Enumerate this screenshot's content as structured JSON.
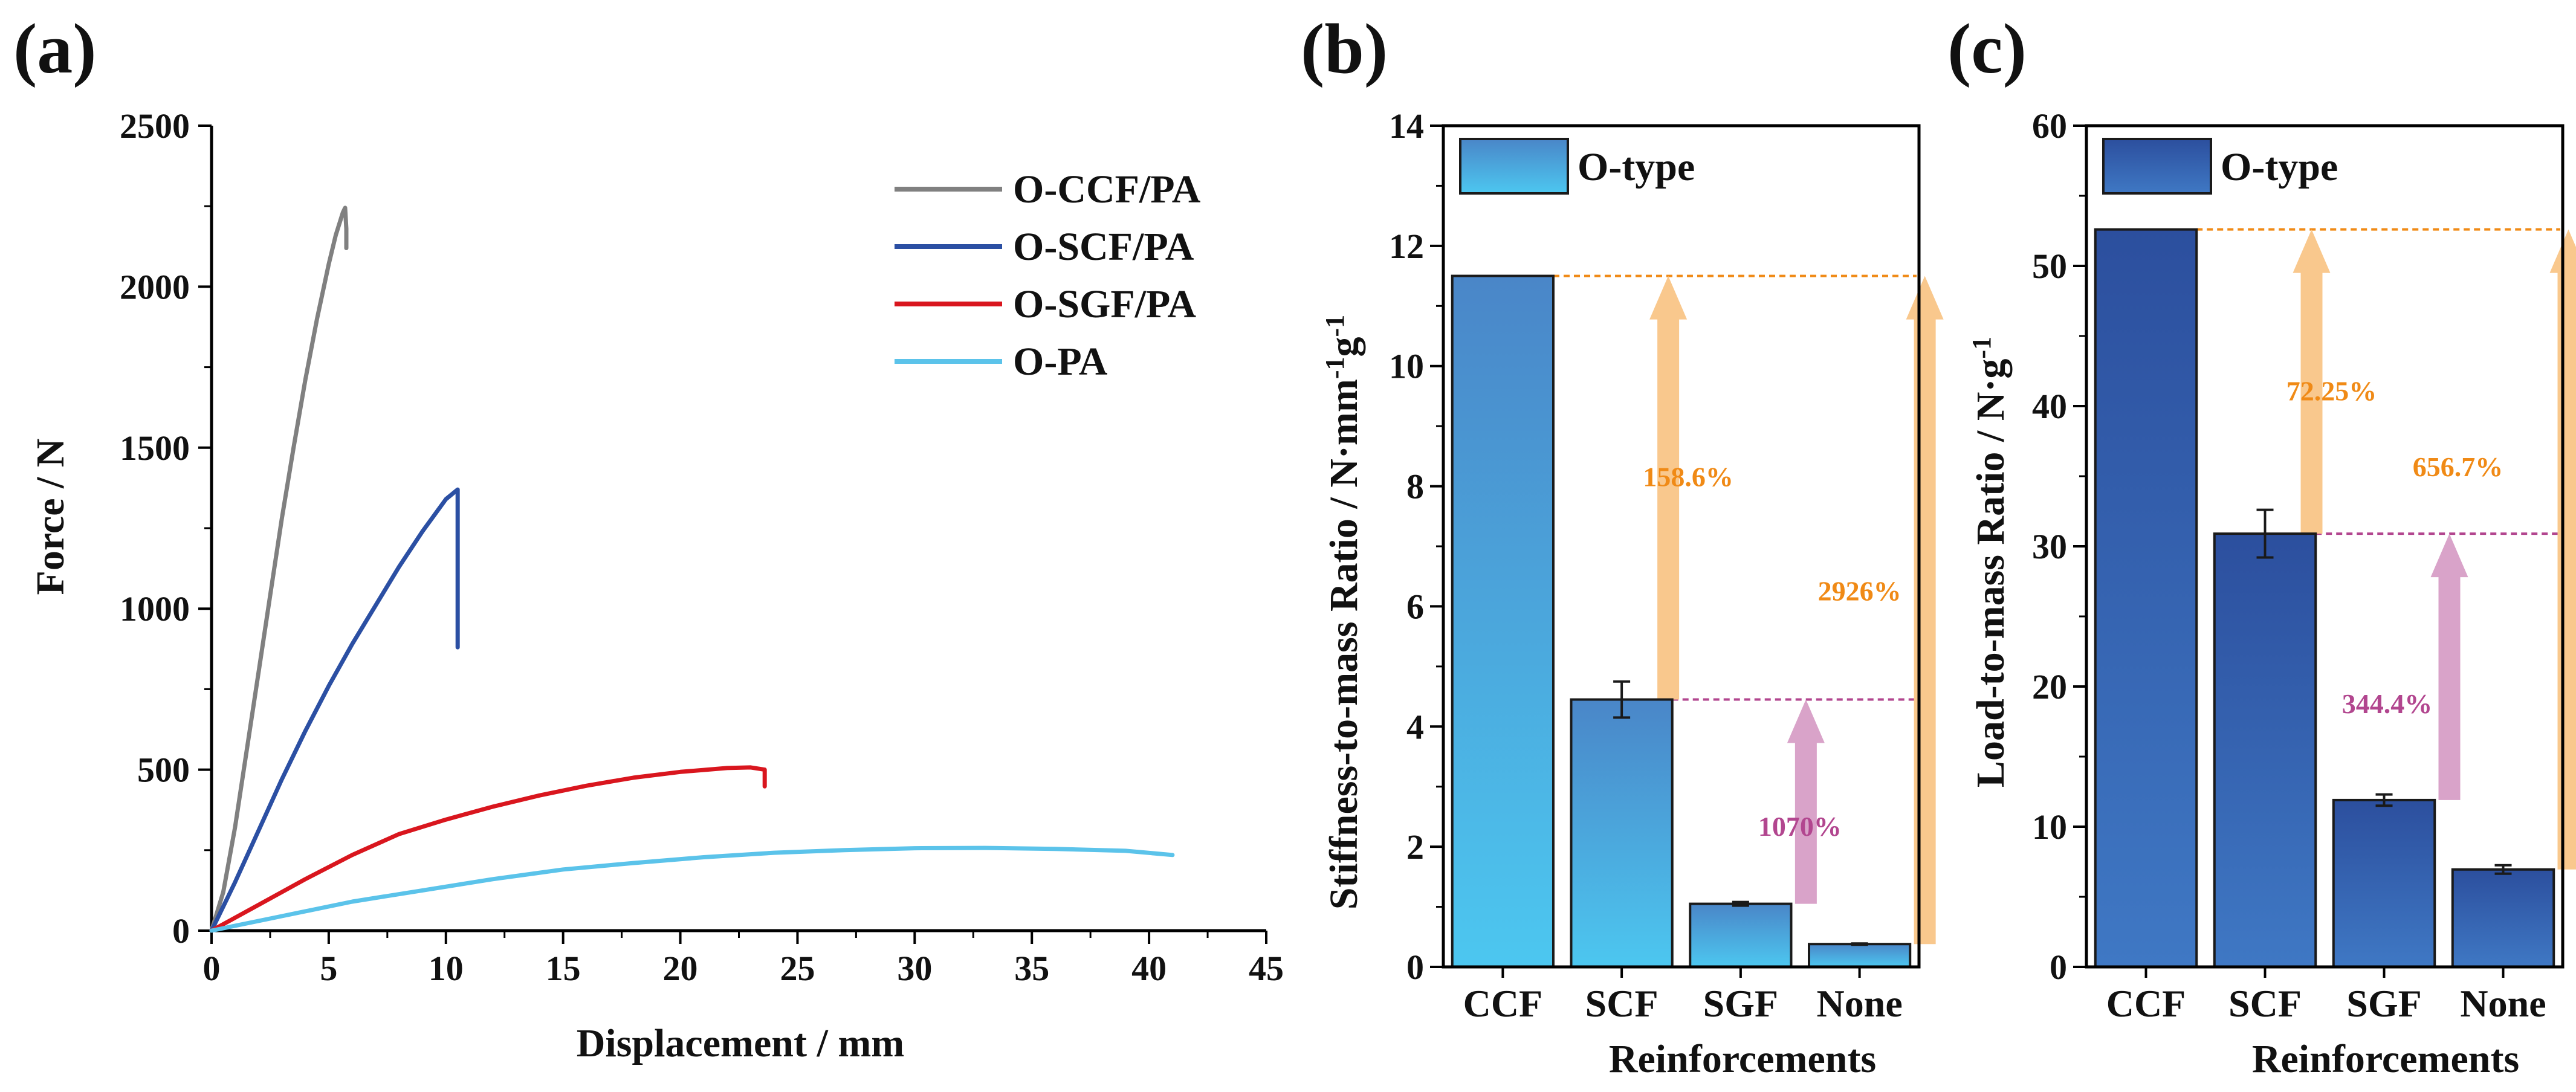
{
  "chart_data": [
    {
      "panel": "(a)",
      "type": "line",
      "xlabel": "Displacement / mm",
      "ylabel": "Force / N",
      "xlim": [
        0,
        45
      ],
      "ylim": [
        0,
        2500
      ],
      "xticks": [
        0,
        5,
        10,
        15,
        20,
        25,
        30,
        35,
        40,
        45
      ],
      "yticks": [
        0,
        500,
        1000,
        1500,
        2000,
        2500
      ],
      "legend_position": "top-right",
      "series": [
        {
          "name": "O-CCF/PA",
          "color": "#808080",
          "points": [
            [
              0,
              0
            ],
            [
              0.5,
              120
            ],
            [
              1,
              320
            ],
            [
              1.5,
              560
            ],
            [
              2,
              800
            ],
            [
              2.5,
              1040
            ],
            [
              3,
              1280
            ],
            [
              3.5,
              1500
            ],
            [
              4,
              1710
            ],
            [
              4.5,
              1900
            ],
            [
              5,
              2070
            ],
            [
              5.3,
              2160
            ],
            [
              5.6,
              2230
            ],
            [
              5.7,
              2245
            ],
            [
              5.75,
              2180
            ],
            [
              5.75,
              2120
            ]
          ]
        },
        {
          "name": "O-SCF/PA",
          "color": "#2b4fa3",
          "points": [
            [
              0,
              0
            ],
            [
              1,
              150
            ],
            [
              2,
              310
            ],
            [
              3,
              470
            ],
            [
              4,
              620
            ],
            [
              5,
              760
            ],
            [
              6,
              890
            ],
            [
              7,
              1010
            ],
            [
              8,
              1130
            ],
            [
              9,
              1240
            ],
            [
              9.5,
              1290
            ],
            [
              10,
              1340
            ],
            [
              10.5,
              1370
            ],
            [
              10.5,
              880
            ]
          ]
        },
        {
          "name": "O-SGF/PA",
          "color": "#d9161e",
          "points": [
            [
              0,
              0
            ],
            [
              2,
              80
            ],
            [
              4,
              160
            ],
            [
              6,
              235
            ],
            [
              8,
              300
            ],
            [
              10,
              345
            ],
            [
              12,
              385
            ],
            [
              14,
              420
            ],
            [
              16,
              450
            ],
            [
              18,
              475
            ],
            [
              20,
              493
            ],
            [
              22,
              505
            ],
            [
              23,
              507
            ],
            [
              23.6,
              500
            ],
            [
              23.6,
              448
            ]
          ]
        },
        {
          "name": "O-PA",
          "color": "#5bc3ea",
          "points": [
            [
              0,
              0
            ],
            [
              3,
              45
            ],
            [
              6,
              90
            ],
            [
              9,
              125
            ],
            [
              12,
              160
            ],
            [
              15,
              190
            ],
            [
              18,
              210
            ],
            [
              21,
              228
            ],
            [
              24,
              242
            ],
            [
              27,
              250
            ],
            [
              30,
              256
            ],
            [
              33,
              257
            ],
            [
              36,
              254
            ],
            [
              39,
              248
            ],
            [
              41,
              235
            ]
          ]
        }
      ]
    },
    {
      "panel": "(b)",
      "type": "bar",
      "ylabel": "Stiffness-to-mass Ratio / N·mm",
      "ylabel_sup1": "-1",
      "ylabel_mid": "g",
      "ylabel_sup2": "-1",
      "xlabel": "Reinforcements",
      "categories": [
        "CCF",
        "SCF",
        "SGF",
        "None"
      ],
      "values": [
        11.5,
        4.45,
        1.05,
        0.38
      ],
      "errors": [
        0,
        0.3,
        0.03,
        0.01
      ],
      "ylim": [
        0,
        14
      ],
      "yticks": [
        0,
        2,
        4,
        6,
        8,
        10,
        12,
        14
      ],
      "legend": "O-type",
      "annotations": [
        {
          "text": "158.6%",
          "color": "#f08a16"
        },
        {
          "text": "2926%",
          "color": "#f08a16"
        },
        {
          "text": "1070%",
          "color": "#b2468f"
        }
      ]
    },
    {
      "panel": "(c)",
      "type": "bar",
      "ylabel": "Load-to-mass Ratio / N·g",
      "ylabel_sup1": "-1",
      "xlabel": "Reinforcements",
      "categories": [
        "CCF",
        "SCF",
        "SGF",
        "None"
      ],
      "values": [
        52.6,
        30.9,
        11.9,
        6.95
      ],
      "errors": [
        0,
        1.7,
        0.4,
        0.3
      ],
      "ylim": [
        0,
        60
      ],
      "yticks": [
        0,
        10,
        20,
        30,
        40,
        50,
        60
      ],
      "legend": "O-type",
      "annotations": [
        {
          "text": "72.25%",
          "color": "#f08a16"
        },
        {
          "text": "656.7%",
          "color": "#f08a16"
        },
        {
          "text": "344.4%",
          "color": "#b2468f"
        }
      ]
    }
  ],
  "colors": {
    "orange_arrow": "#f9c88d",
    "orange_line": "#f08a16",
    "purple_arrow": "#d9a3c9",
    "purple_line": "#b2468f",
    "bar_b_top": "#4a86c8",
    "bar_b_bottom": "#4cc7f0",
    "bar_c_top": "#2c4f9e",
    "bar_c_bottom": "#3f78c4"
  }
}
